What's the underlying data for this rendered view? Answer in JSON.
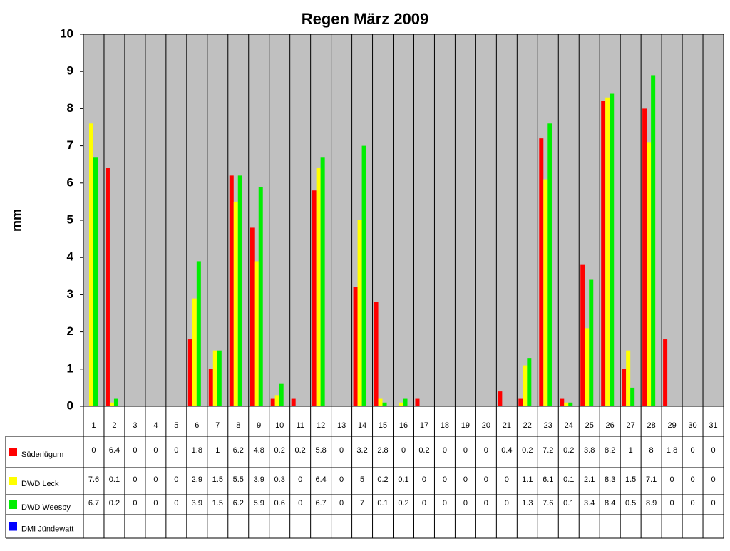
{
  "chart_data": {
    "type": "bar",
    "title": "Regen März 2009",
    "y_label": "mm",
    "categories": [
      "1",
      "2",
      "3",
      "4",
      "5",
      "6",
      "7",
      "8",
      "9",
      "10",
      "11",
      "12",
      "13",
      "14",
      "15",
      "16",
      "17",
      "18",
      "19",
      "20",
      "21",
      "22",
      "23",
      "24",
      "25",
      "26",
      "27",
      "28",
      "29",
      "30",
      "31"
    ],
    "series": [
      {
        "name": "Süderlügum",
        "color": "#ff0000",
        "values": [
          0,
          6.4,
          0,
          0,
          0,
          1.8,
          1,
          6.2,
          4.8,
          0.2,
          0.2,
          5.8,
          0,
          3.2,
          2.8,
          0,
          0.2,
          0,
          0,
          0,
          0.4,
          0.2,
          7.2,
          0.2,
          3.8,
          8.2,
          1,
          8,
          1.8,
          0,
          0
        ]
      },
      {
        "name": "DWD Leck",
        "color": "#ffff00",
        "values": [
          7.6,
          0.1,
          0,
          0,
          0,
          2.9,
          1.5,
          5.5,
          3.9,
          0.3,
          0,
          6.4,
          0,
          5,
          0.2,
          0.1,
          0,
          0,
          0,
          0,
          0,
          1.1,
          6.1,
          0.1,
          2.1,
          8.3,
          1.5,
          7.1,
          0,
          0,
          0
        ]
      },
      {
        "name": "DWD Weesby",
        "color": "#00ee00",
        "values": [
          6.7,
          0.2,
          0,
          0,
          0,
          3.9,
          1.5,
          6.2,
          5.9,
          0.6,
          0,
          6.7,
          0,
          7,
          0.1,
          0.2,
          0,
          0,
          0,
          0,
          0,
          1.3,
          7.6,
          0.1,
          3.4,
          8.4,
          0.5,
          8.9,
          0,
          0,
          0
        ]
      },
      {
        "name": "DMI Jündewatt",
        "color": "#0000ff",
        "values": [
          null,
          null,
          null,
          null,
          null,
          null,
          null,
          null,
          null,
          null,
          null,
          null,
          null,
          null,
          null,
          null,
          null,
          null,
          null,
          null,
          null,
          null,
          null,
          null,
          null,
          null,
          null,
          null,
          null,
          null,
          null
        ]
      }
    ],
    "ylim": [
      0,
      10
    ],
    "yticks": [
      0,
      1,
      2,
      3,
      4,
      5,
      6,
      7,
      8,
      9,
      10
    ],
    "plot_background": "#c0c0c0"
  }
}
